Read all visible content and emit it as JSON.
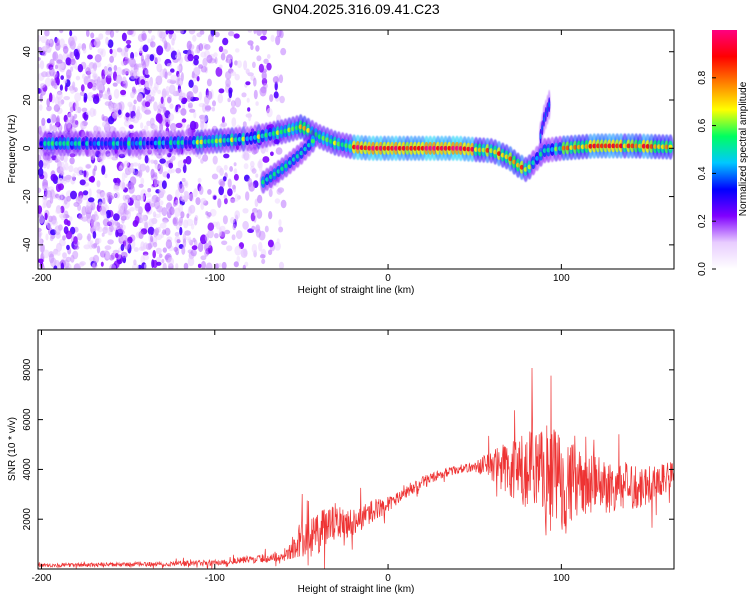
{
  "chart_data": [
    {
      "type": "heatmap",
      "title": "GN04.2025.316.09.41.C23",
      "xlabel": "Height of straight line (km)",
      "ylabel": "Frequency (Hz)",
      "xlim": [
        -202,
        165
      ],
      "ylim": [
        -50,
        49
      ],
      "xticks": [
        -200,
        -100,
        0,
        100
      ],
      "yticks": [
        -40,
        -20,
        0,
        20,
        40
      ],
      "colorbar": {
        "label": "Normalized spectral amplitude",
        "range": [
          0.0,
          1.0
        ],
        "ticks": [
          "0.0",
          "0.2",
          "0.4",
          "0.6",
          "0.8"
        ],
        "colors": [
          "#ffffff",
          "#e8ccff",
          "#8000ff",
          "#0000ff",
          "#00c8ff",
          "#00ff60",
          "#ffff00",
          "#ff8000",
          "#ff0000",
          "#ff0080"
        ]
      },
      "ridge": {
        "x": [
          -200,
          -150,
          -110,
          -80,
          -60,
          -50,
          -40,
          -30,
          -20,
          -10,
          0,
          20,
          40,
          60,
          70,
          75,
          80,
          85,
          90,
          100,
          120,
          140,
          165
        ],
        "freq": [
          2,
          2,
          2.5,
          4,
          7,
          9,
          5,
          2,
          0.5,
          0,
          0,
          0,
          0,
          -1,
          -4,
          -7,
          -9,
          -5,
          -1,
          0,
          1,
          1,
          0.5
        ]
      },
      "branch": {
        "x": [
          -72,
          -60,
          -50,
          -42
        ],
        "freq": [
          -14,
          -8,
          -2,
          4
        ]
      },
      "spike": {
        "x": [
          88,
          90,
          93
        ],
        "freq": [
          5,
          12,
          18
        ]
      }
    },
    {
      "type": "line",
      "xlabel": "Height of straight line (km)",
      "ylabel": "SNR (10 * v/v)",
      "xlim": [
        -202,
        165
      ],
      "ylim": [
        0,
        9600
      ],
      "xticks": [
        -200,
        -100,
        0,
        100
      ],
      "yticks": [
        2000,
        4000,
        6000,
        8000
      ],
      "color": "#ee3333",
      "envelope": {
        "x": [
          -200,
          -150,
          -100,
          -60,
          -50,
          -40,
          -30,
          -20,
          -10,
          0,
          10,
          20,
          30,
          40,
          50,
          60,
          70,
          80,
          90,
          100,
          110,
          120,
          130,
          140,
          150,
          165
        ],
        "base": [
          150,
          180,
          250,
          500,
          1200,
          1400,
          1900,
          1900,
          2300,
          2600,
          3000,
          3500,
          3800,
          4000,
          4100,
          4200,
          4000,
          3800,
          3600,
          3700,
          3400,
          3400,
          3300,
          3300,
          3400,
          3800
        ],
        "amp": [
          120,
          150,
          200,
          300,
          1300,
          1500,
          1300,
          900,
          800,
          500,
          400,
          400,
          300,
          300,
          300,
          1200,
          2000,
          2800,
          3800,
          3600,
          2200,
          2000,
          1800,
          1600,
          1400,
          900
        ]
      }
    }
  ]
}
